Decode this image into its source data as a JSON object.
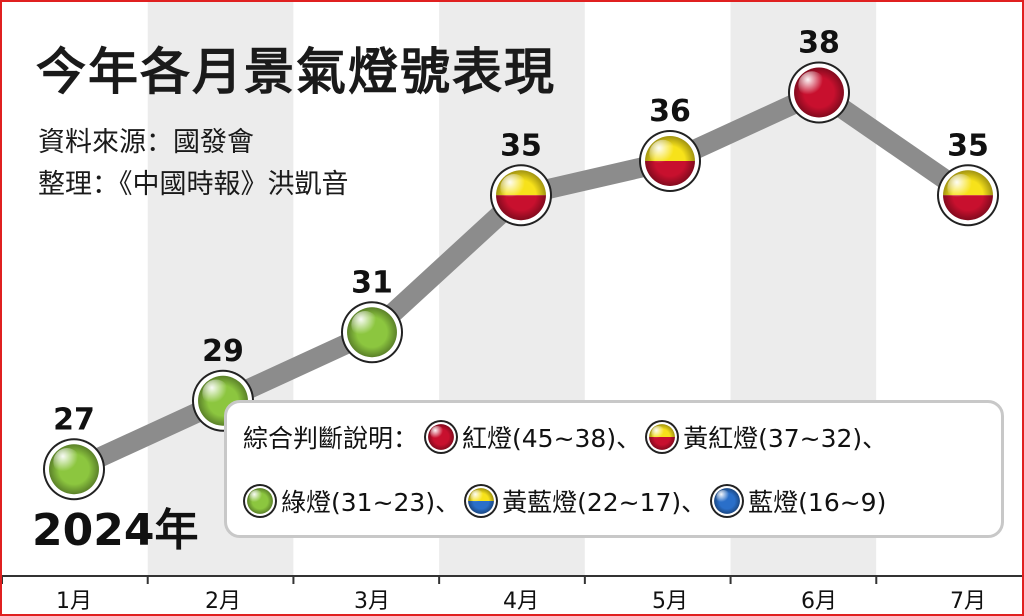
{
  "title": "今年各月景氣燈號表現",
  "source_line": "資料來源：國發會",
  "editor_line": "整理：《中國時報》洪凱音",
  "year_label": "2024年",
  "chart_data": {
    "type": "line",
    "categories": [
      "1月",
      "2月",
      "3月",
      "4月",
      "5月",
      "6月",
      "7月"
    ],
    "values": [
      27,
      29,
      31,
      35,
      36,
      38,
      35
    ],
    "lamps": [
      "green",
      "green",
      "green",
      "yellow-red",
      "yellow-red",
      "red",
      "yellow-red"
    ],
    "ylim": [
      24,
      40
    ],
    "title": "今年各月景氣燈號表現",
    "xlabel": "",
    "ylabel": ""
  },
  "legend": {
    "title": "綜合判斷說明：",
    "items": [
      {
        "lamp": "red",
        "label": "紅燈(45~38)、"
      },
      {
        "lamp": "yellow-red",
        "label": "黃紅燈(37~32)、"
      },
      {
        "lamp": "green",
        "label": "綠燈(31~23)、"
      },
      {
        "lamp": "yellow-blue",
        "label": "黃藍燈(22~17)、"
      },
      {
        "lamp": "blue",
        "label": "藍燈(16~9)"
      }
    ]
  },
  "colors": {
    "red": "#c8102e",
    "yellow": "#f7e21a",
    "green": "#8cc63f",
    "blue": "#2a6fc9",
    "line": "#8c8c8c",
    "stripe": "#ececec",
    "frame": "#e02020"
  }
}
